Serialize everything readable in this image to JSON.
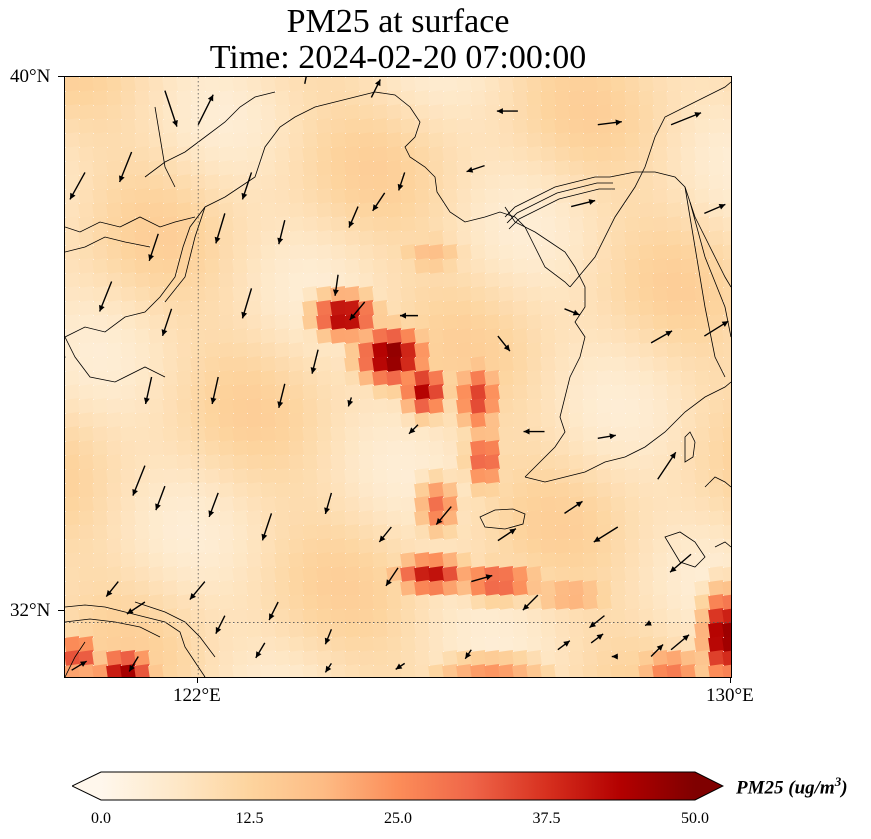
{
  "title": {
    "line1": "PM25 at surface",
    "line2": "Time: 2024-02-20 07:00:00"
  },
  "map": {
    "lat_range": [
      31.2,
      40.0
    ],
    "lon_range": [
      120.0,
      130.0
    ],
    "lat_labels": [
      {
        "value": 40,
        "text": "40°N"
      },
      {
        "value": 32,
        "text": "32°N"
      }
    ],
    "lon_labels": [
      {
        "value": 122,
        "text": "122°E"
      },
      {
        "value": 130,
        "text": "130°E"
      }
    ],
    "gridlines": "dotted",
    "hotspots": [
      {
        "lon": 124.9,
        "lat": 35.9,
        "value": 50,
        "spread_lon": 0.55,
        "spread_lat": 0.45
      },
      {
        "lon": 124.2,
        "lat": 36.5,
        "value": 47,
        "spread_lon": 0.5,
        "spread_lat": 0.35
      },
      {
        "lon": 125.4,
        "lat": 35.4,
        "value": 44,
        "spread_lon": 0.35,
        "spread_lat": 0.4
      },
      {
        "lon": 126.2,
        "lat": 35.3,
        "value": 36,
        "spread_lon": 0.35,
        "spread_lat": 0.55
      },
      {
        "lon": 126.3,
        "lat": 34.4,
        "value": 34,
        "spread_lon": 0.3,
        "spread_lat": 0.5
      },
      {
        "lon": 125.6,
        "lat": 33.7,
        "value": 30,
        "spread_lon": 0.35,
        "spread_lat": 0.45
      },
      {
        "lon": 125.5,
        "lat": 32.7,
        "value": 42,
        "spread_lon": 0.6,
        "spread_lat": 0.3
      },
      {
        "lon": 126.5,
        "lat": 32.6,
        "value": 34,
        "spread_lon": 0.7,
        "spread_lat": 0.3
      },
      {
        "lon": 127.6,
        "lat": 32.4,
        "value": 22,
        "spread_lon": 0.7,
        "spread_lat": 0.3
      },
      {
        "lon": 125.5,
        "lat": 37.4,
        "value": 18,
        "spread_lon": 0.6,
        "spread_lat": 0.35
      },
      {
        "lon": 129.9,
        "lat": 31.8,
        "value": 50,
        "spread_lon": 0.35,
        "spread_lat": 0.7
      },
      {
        "lon": 129.1,
        "lat": 31.3,
        "value": 28,
        "spread_lon": 0.6,
        "spread_lat": 0.35
      },
      {
        "lon": 120.9,
        "lat": 31.3,
        "value": 46,
        "spread_lon": 0.45,
        "spread_lat": 0.3
      },
      {
        "lon": 120.2,
        "lat": 31.5,
        "value": 36,
        "spread_lon": 0.35,
        "spread_lat": 0.35
      },
      {
        "lon": 126.4,
        "lat": 31.3,
        "value": 24,
        "spread_lon": 1.0,
        "spread_lat": 0.25
      }
    ],
    "background_level": 9,
    "winds": [
      {
        "lon": 121.5,
        "lat": 39.8,
        "u": 0.4,
        "v": -1.2
      },
      {
        "lon": 121.0,
        "lat": 38.9,
        "u": -0.4,
        "v": -1.0
      },
      {
        "lon": 120.3,
        "lat": 38.6,
        "u": -0.5,
        "v": -0.9
      },
      {
        "lon": 122.0,
        "lat": 39.3,
        "u": 0.5,
        "v": 1.0
      },
      {
        "lon": 121.4,
        "lat": 37.7,
        "u": -0.3,
        "v": -0.9
      },
      {
        "lon": 122.8,
        "lat": 38.6,
        "u": -0.3,
        "v": -0.9
      },
      {
        "lon": 123.6,
        "lat": 39.9,
        "u": 0.1,
        "v": 0.5
      },
      {
        "lon": 124.6,
        "lat": 39.7,
        "u": 0.3,
        "v": 0.6
      },
      {
        "lon": 126.8,
        "lat": 39.5,
        "u": -0.7,
        "v": 0.0
      },
      {
        "lon": 128.0,
        "lat": 39.3,
        "u": 0.8,
        "v": 0.1
      },
      {
        "lon": 129.1,
        "lat": 39.3,
        "u": 1.0,
        "v": 0.4
      },
      {
        "lon": 122.4,
        "lat": 38.0,
        "u": -0.3,
        "v": -1.0
      },
      {
        "lon": 123.3,
        "lat": 37.9,
        "u": -0.2,
        "v": -0.8
      },
      {
        "lon": 124.1,
        "lat": 37.1,
        "u": -0.1,
        "v": -0.7
      },
      {
        "lon": 124.8,
        "lat": 38.3,
        "u": -0.4,
        "v": -0.6
      },
      {
        "lon": 124.4,
        "lat": 38.1,
        "u": -0.3,
        "v": -0.7
      },
      {
        "lon": 125.1,
        "lat": 38.6,
        "u": -0.2,
        "v": -0.6
      },
      {
        "lon": 126.3,
        "lat": 38.7,
        "u": -0.6,
        "v": -0.2
      },
      {
        "lon": 127.6,
        "lat": 38.1,
        "u": 0.8,
        "v": 0.2
      },
      {
        "lon": 129.6,
        "lat": 38.0,
        "u": 0.7,
        "v": 0.3
      },
      {
        "lon": 120.7,
        "lat": 37.0,
        "u": -0.4,
        "v": -1.0
      },
      {
        "lon": 121.6,
        "lat": 36.6,
        "u": -0.3,
        "v": -0.9
      },
      {
        "lon": 122.8,
        "lat": 36.9,
        "u": -0.3,
        "v": -1.0
      },
      {
        "lon": 123.8,
        "lat": 36.0,
        "u": -0.2,
        "v": -0.8
      },
      {
        "lon": 124.5,
        "lat": 36.7,
        "u": -0.5,
        "v": -0.6
      },
      {
        "lon": 125.3,
        "lat": 36.5,
        "u": -0.6,
        "v": 0.0
      },
      {
        "lon": 126.5,
        "lat": 36.2,
        "u": 0.4,
        "v": -0.5
      },
      {
        "lon": 127.5,
        "lat": 36.6,
        "u": 0.5,
        "v": -0.2
      },
      {
        "lon": 129.6,
        "lat": 36.2,
        "u": 0.8,
        "v": 0.5
      },
      {
        "lon": 128.8,
        "lat": 36.1,
        "u": 0.7,
        "v": 0.4
      },
      {
        "lon": 120.0,
        "lat": 35.9,
        "u": -0.3,
        "v": -0.6
      },
      {
        "lon": 121.3,
        "lat": 35.6,
        "u": -0.2,
        "v": -0.9
      },
      {
        "lon": 122.3,
        "lat": 35.6,
        "u": -0.2,
        "v": -0.9
      },
      {
        "lon": 123.3,
        "lat": 35.5,
        "u": -0.2,
        "v": -0.8
      },
      {
        "lon": 124.3,
        "lat": 35.3,
        "u": -0.1,
        "v": -0.3
      },
      {
        "lon": 125.3,
        "lat": 34.9,
        "u": -0.3,
        "v": -0.3
      },
      {
        "lon": 127.2,
        "lat": 34.8,
        "u": -0.7,
        "v": 0.0
      },
      {
        "lon": 128.0,
        "lat": 34.7,
        "u": 0.6,
        "v": 0.1
      },
      {
        "lon": 128.9,
        "lat": 34.1,
        "u": 0.6,
        "v": 0.9
      },
      {
        "lon": 121.2,
        "lat": 34.3,
        "u": -0.4,
        "v": -1.0
      },
      {
        "lon": 121.5,
        "lat": 34.0,
        "u": -0.3,
        "v": -0.8
      },
      {
        "lon": 122.3,
        "lat": 33.9,
        "u": -0.3,
        "v": -0.8
      },
      {
        "lon": 123.1,
        "lat": 33.6,
        "u": -0.3,
        "v": -0.9
      },
      {
        "lon": 124.0,
        "lat": 33.9,
        "u": -0.2,
        "v": -0.7
      },
      {
        "lon": 124.9,
        "lat": 33.4,
        "u": -0.4,
        "v": -0.5
      },
      {
        "lon": 125.8,
        "lat": 33.7,
        "u": -0.5,
        "v": -0.6
      },
      {
        "lon": 126.5,
        "lat": 33.2,
        "u": 0.6,
        "v": 0.4
      },
      {
        "lon": 127.5,
        "lat": 33.6,
        "u": 0.6,
        "v": 0.4
      },
      {
        "lon": 128.3,
        "lat": 33.4,
        "u": -0.8,
        "v": -0.5
      },
      {
        "lon": 129.4,
        "lat": 33.0,
        "u": -0.7,
        "v": -0.6
      },
      {
        "lon": 120.8,
        "lat": 32.6,
        "u": -0.4,
        "v": -0.5
      },
      {
        "lon": 121.2,
        "lat": 32.3,
        "u": -0.6,
        "v": -0.4
      },
      {
        "lon": 122.1,
        "lat": 32.6,
        "u": -0.5,
        "v": -0.6
      },
      {
        "lon": 122.4,
        "lat": 32.1,
        "u": -0.3,
        "v": -0.6
      },
      {
        "lon": 123.2,
        "lat": 32.3,
        "u": -0.3,
        "v": -0.6
      },
      {
        "lon": 124.0,
        "lat": 31.9,
        "u": -0.2,
        "v": -0.5
      },
      {
        "lon": 125.0,
        "lat": 32.8,
        "u": -0.4,
        "v": -0.6
      },
      {
        "lon": 126.1,
        "lat": 32.6,
        "u": 0.7,
        "v": 0.2
      },
      {
        "lon": 127.1,
        "lat": 32.4,
        "u": -0.5,
        "v": -0.5
      },
      {
        "lon": 128.1,
        "lat": 32.1,
        "u": -0.5,
        "v": -0.4
      },
      {
        "lon": 128.8,
        "lat": 31.5,
        "u": 0.4,
        "v": 0.4
      },
      {
        "lon": 120.1,
        "lat": 31.3,
        "u": 0.5,
        "v": 0.3
      },
      {
        "lon": 121.1,
        "lat": 31.5,
        "u": -0.3,
        "v": -0.5
      },
      {
        "lon": 122.1,
        "lat": 31.2,
        "u": -0.3,
        "v": -0.4
      },
      {
        "lon": 123.0,
        "lat": 31.7,
        "u": -0.3,
        "v": -0.5
      },
      {
        "lon": 124.0,
        "lat": 31.4,
        "u": -0.2,
        "v": -0.3
      },
      {
        "lon": 125.1,
        "lat": 31.4,
        "u": -0.3,
        "v": -0.2
      },
      {
        "lon": 126.1,
        "lat": 31.6,
        "u": -0.2,
        "v": -0.3
      },
      {
        "lon": 127.4,
        "lat": 31.6,
        "u": 0.4,
        "v": 0.3
      },
      {
        "lon": 127.9,
        "lat": 31.7,
        "u": 0.4,
        "v": 0.3
      },
      {
        "lon": 128.8,
        "lat": 32.0,
        "u": -0.2,
        "v": -0.1
      },
      {
        "lon": 129.1,
        "lat": 31.6,
        "u": 0.6,
        "v": 0.5
      },
      {
        "lon": 128.3,
        "lat": 31.5,
        "u": -0.2,
        "v": 0.0
      }
    ]
  },
  "colorbar": {
    "label_main": "PM25 (ug/m",
    "label_exp": "3",
    "label_tail": ")",
    "min": 0,
    "max": 50,
    "extend": "both",
    "colormap": "OrRd",
    "ticks": [
      "0.0",
      "12.5",
      "25.0",
      "37.5",
      "50.0"
    ],
    "colors": [
      "#fff7ec",
      "#fee8c8",
      "#fdd49e",
      "#fdbb84",
      "#fc8d59",
      "#ef6548",
      "#d7301f",
      "#b30000",
      "#7f0000"
    ]
  }
}
